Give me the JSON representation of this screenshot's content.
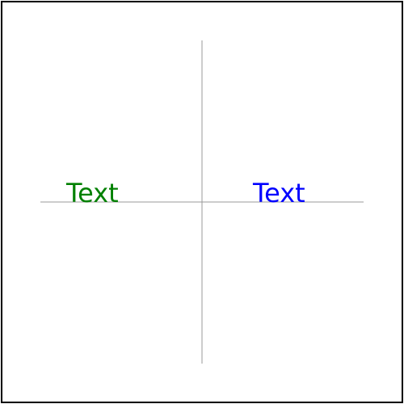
{
  "diagram": {
    "labels": {
      "left": {
        "text": "Text",
        "color": "#008000"
      },
      "right": {
        "text": "Text",
        "color": "#0000ff"
      }
    },
    "colors": {
      "frame": "#000000",
      "axes": "#999999"
    }
  }
}
